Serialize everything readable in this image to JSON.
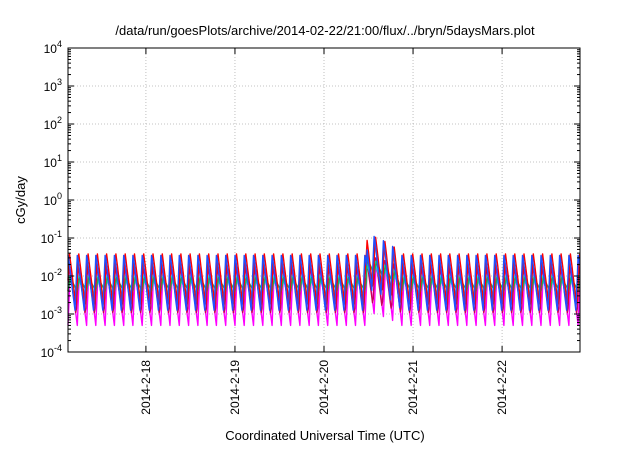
{
  "chart_data": {
    "type": "line",
    "title": "/data/run/goesPlots/archive/2014-02-22/21:00/flux/../bryn/5daysMars.plot",
    "xlabel": "Coordinated Universal Time (UTC)",
    "ylabel": "cGy/day",
    "yscale": "log",
    "ylim": [
      0.0001,
      10000
    ],
    "xlim": [
      "2014-02-17 03:00",
      "2014-02-22 21:00"
    ],
    "y_ticks": [
      {
        "base": "10",
        "exp": "-4"
      },
      {
        "base": "10",
        "exp": "-3"
      },
      {
        "base": "10",
        "exp": "-2"
      },
      {
        "base": "10",
        "exp": "-1"
      },
      {
        "base": "10",
        "exp": "0"
      },
      {
        "base": "10",
        "exp": "1"
      },
      {
        "base": "10",
        "exp": "2"
      },
      {
        "base": "10",
        "exp": "3"
      },
      {
        "base": "10",
        "exp": "4"
      }
    ],
    "x_ticks": [
      "2014-2-18",
      "2014-2-19",
      "2014-2-20",
      "2014-2-21",
      "2014-2-22"
    ],
    "grid": true,
    "oscillation_period_hours": 2.5,
    "series": [
      {
        "color": "#ff00ff",
        "peak": 0.015,
        "trough": 0.0005
      },
      {
        "color": "#c8005a",
        "peak": 0.02,
        "trough": 0.0009
      },
      {
        "color": "#00e0e0",
        "peak": 0.012,
        "trough": 0.003
      },
      {
        "color": "#20b050",
        "peak": 0.009,
        "trough": 0.004
      },
      {
        "color": "#ff0000",
        "peak": 0.045,
        "trough": 0.0015
      },
      {
        "color": "#2050ff",
        "peak": 0.04,
        "trough": 0.0012
      }
    ],
    "event": {
      "start": "2014-02-20 11:30",
      "peak_value": 0.15,
      "decay_end": "2014-02-20 21:00"
    }
  }
}
